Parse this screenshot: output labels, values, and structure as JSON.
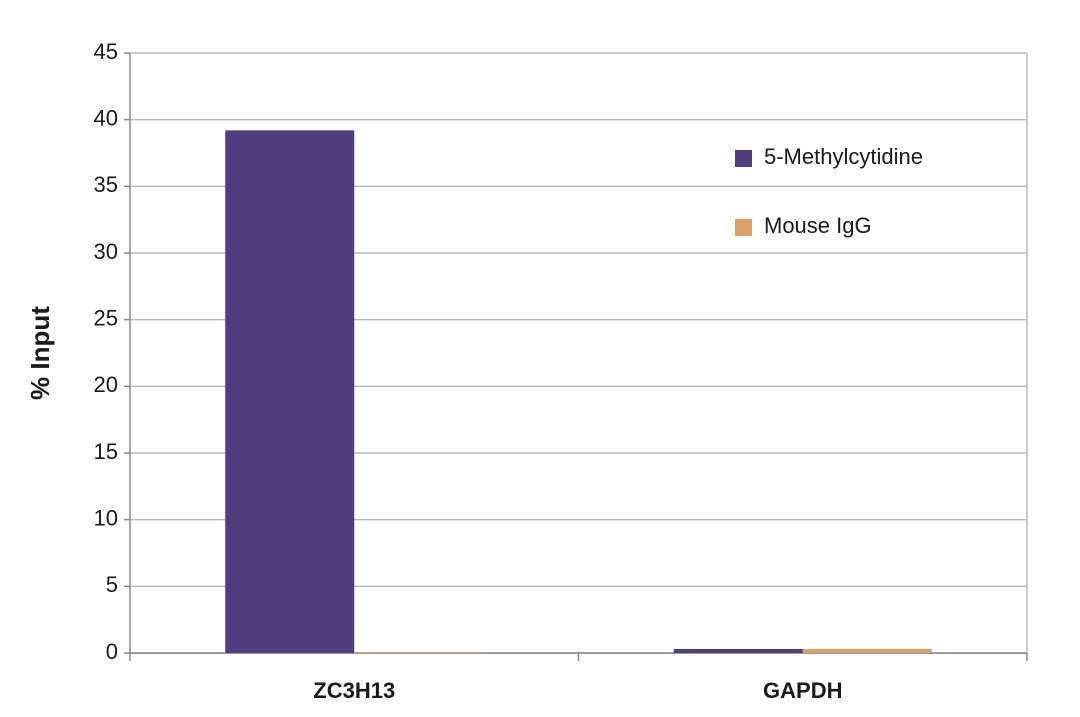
{
  "chart_data": {
    "type": "bar",
    "y_label": "% Input",
    "categories": [
      "ZC3H13",
      "GAPDH"
    ],
    "series": [
      {
        "name": "5-Methylcytidine",
        "color": "#523c80",
        "values": [
          39.2,
          0.3
        ]
      },
      {
        "name": "Mouse IgG",
        "color": "#d9a06b",
        "values": [
          0.05,
          0.3
        ]
      }
    ],
    "ylim": [
      0,
      45
    ],
    "yticks": [
      0,
      5,
      10,
      15,
      20,
      25,
      30,
      35,
      40,
      45
    ],
    "grid": true,
    "legend": "upper right"
  }
}
